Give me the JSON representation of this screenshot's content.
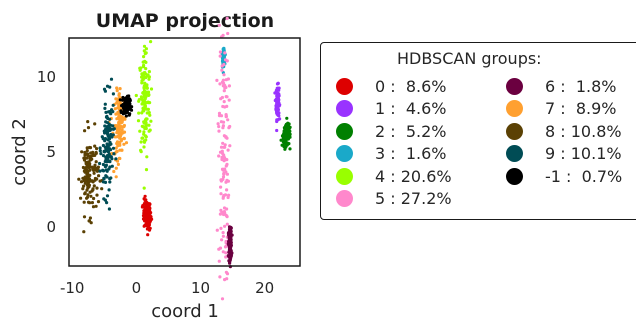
{
  "chart_data": {
    "type": "scatter",
    "title": "UMAP projection",
    "xlabel": "coord 1",
    "ylabel": "coord 2",
    "xlim": [
      -10.5,
      25.5
    ],
    "ylim": [
      -2.6,
      12.6
    ],
    "xticks": [
      -10,
      0,
      10,
      20
    ],
    "xtick_labels": [
      "-10",
      "0",
      "10",
      "20"
    ],
    "yticks": [
      0,
      5,
      10
    ],
    "ytick_labels": [
      "0",
      "5",
      "10"
    ],
    "grid": false,
    "legend_position": "right",
    "legend_title": "HDBSCAN groups:",
    "series": [
      {
        "name": "0 :  8.6%",
        "color": "#dd0000",
        "center": [
          1.7,
          0.8
        ],
        "spread": [
          0.3,
          0.5
        ],
        "tilt": -0.5
      },
      {
        "name": "1 :  4.6%",
        "color": "#9933ff",
        "center": [
          22.0,
          8.3
        ],
        "spread": [
          0.12,
          0.55
        ],
        "tilt": 0
      },
      {
        "name": "2 :  5.2%",
        "color": "#008000",
        "center": [
          23.4,
          6.1
        ],
        "spread": [
          0.3,
          0.35
        ],
        "tilt": 0.6
      },
      {
        "name": "3 :  1.6%",
        "color": "#1aa9c9",
        "center": [
          13.6,
          11.3
        ],
        "spread": [
          0.08,
          0.25
        ],
        "tilt": 0
      },
      {
        "name": "4 : 20.6%",
        "color": "#99ff00",
        "center": [
          1.3,
          8.3
        ],
        "spread": [
          0.45,
          2.0
        ],
        "tilt": 0
      },
      {
        "name": "5 : 27.2%",
        "color": "#ff88cc",
        "center": [
          13.6,
          5.0
        ],
        "spread": [
          0.4,
          4.4
        ],
        "tilt": 0
      },
      {
        "name": "6 :  1.8%",
        "color": "#6b0040",
        "center": [
          14.6,
          -1.2
        ],
        "spread": [
          0.12,
          0.55
        ],
        "tilt": 0
      },
      {
        "name": "7 :  8.9%",
        "color": "#ffa030",
        "center": [
          -2.6,
          6.8
        ],
        "spread": [
          0.45,
          1.1
        ],
        "tilt": 0.4
      },
      {
        "name": "8 : 10.8%",
        "color": "#5b4104",
        "center": [
          -7.3,
          3.5
        ],
        "spread": [
          0.7,
          1.3
        ],
        "tilt": 0
      },
      {
        "name": "9 : 10.1%",
        "color": "#004c55",
        "center": [
          -4.5,
          5.2
        ],
        "spread": [
          0.45,
          1.6
        ],
        "tilt": 0.2
      },
      {
        "name": "-1 :  0.7%",
        "color": "#000000",
        "center": [
          -1.6,
          8.1
        ],
        "spread": [
          0.3,
          0.3
        ],
        "tilt": 0
      }
    ]
  }
}
